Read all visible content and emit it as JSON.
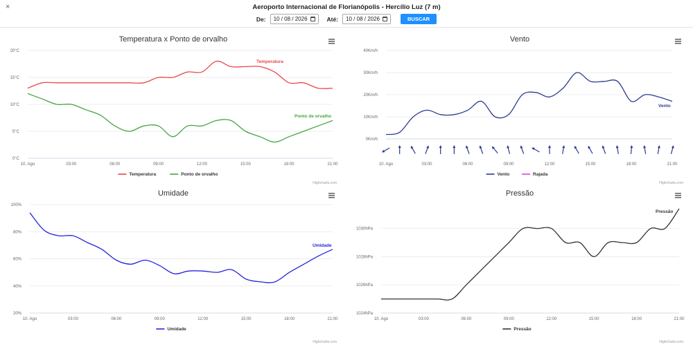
{
  "header": {
    "close_label": "×",
    "title": "Aeroporto Internacional de Florianópolis - Hercílio Luz (7 m)",
    "from_label": "De:",
    "from_value": "10 / 08 / 2026",
    "to_label": "Até:",
    "to_value": "10 / 08 / 2026",
    "search_label": "BUSCAR",
    "accent_color": "#1e90ff"
  },
  "credits": "Highcharts.com",
  "x_tick_labels": [
    "10. Ago",
    "03:00",
    "06:00",
    "09:00",
    "12:00",
    "15:00",
    "18:00",
    "21:00"
  ],
  "chart_data": [
    {
      "type": "line",
      "title": "Temperatura x Ponto de orvalho",
      "y_ticks": [
        "0°C",
        "5°C",
        "10°C",
        "15°C",
        "20°C"
      ],
      "ylim": [
        0,
        20
      ],
      "x_hours": [
        0,
        1,
        2,
        3,
        4,
        5,
        6,
        7,
        8,
        9,
        10,
        11,
        12,
        13,
        14,
        15,
        16,
        17,
        18,
        19,
        20,
        21
      ],
      "series": [
        {
          "name": "Temperatura",
          "color": "#e8474b",
          "values": [
            13,
            14,
            14,
            14,
            14,
            14,
            14,
            14,
            14,
            15,
            15,
            16,
            16,
            18,
            17,
            17,
            17,
            16,
            14,
            14,
            13,
            13
          ]
        },
        {
          "name": "Ponto de orvalho",
          "color": "#43a53f",
          "values": [
            12,
            11,
            10,
            10,
            9,
            8,
            6,
            5,
            6,
            6,
            4,
            6,
            6,
            7,
            7,
            5,
            4,
            3,
            4,
            5,
            6,
            7
          ]
        }
      ],
      "legend": "bottom-center"
    },
    {
      "type": "line",
      "title": "Vento",
      "y_ticks": [
        "0Km/h",
        "10Km/h",
        "20Km/h",
        "30Km/h",
        "40Km/h"
      ],
      "ylim": [
        0,
        40
      ],
      "x_hours": [
        0,
        1,
        2,
        3,
        4,
        5,
        6,
        7,
        8,
        9,
        10,
        11,
        12,
        13,
        14,
        15,
        16,
        17,
        18,
        19,
        20,
        21
      ],
      "series": [
        {
          "name": "Vento",
          "color": "#2b3a8f",
          "values": [
            2,
            3,
            10,
            13,
            11,
            11,
            13,
            17,
            10,
            11,
            20,
            21,
            19,
            23,
            30,
            26,
            26,
            26,
            17,
            20,
            19,
            17
          ]
        },
        {
          "name": "Rajada",
          "color": "#d645d6",
          "values": []
        }
      ],
      "wind_direction_deg": [
        240,
        0,
        330,
        20,
        0,
        0,
        340,
        340,
        320,
        345,
        340,
        300,
        0,
        10,
        330,
        330,
        340,
        350,
        5,
        350,
        10,
        15
      ],
      "legend": "bottom-center"
    },
    {
      "type": "line",
      "title": "Umidade",
      "y_ticks": [
        "20%",
        "40%",
        "60%",
        "80%",
        "100%"
      ],
      "ylim": [
        20,
        100
      ],
      "x_hours": [
        0,
        1,
        2,
        3,
        4,
        5,
        6,
        7,
        8,
        9,
        10,
        11,
        12,
        13,
        14,
        15,
        16,
        17,
        18,
        19,
        20,
        21
      ],
      "series": [
        {
          "name": "Umidade",
          "color": "#2323e0",
          "values": [
            94,
            81,
            77,
            77,
            72,
            67,
            59,
            56,
            59,
            55,
            49,
            51,
            51,
            50,
            52,
            45,
            43,
            43,
            50,
            56,
            62,
            67
          ]
        }
      ],
      "legend": "bottom-center"
    },
    {
      "type": "line",
      "title": "Pressão",
      "y_ticks": [
        "1024hPa",
        "1026hPa",
        "1028hPa",
        "1030hPa"
      ],
      "ylim": [
        1024,
        1031.4
      ],
      "x_hours": [
        0,
        1,
        2,
        3,
        4,
        5,
        6,
        7,
        8,
        9,
        10,
        11,
        12,
        13,
        14,
        15,
        16,
        17,
        18,
        19,
        20,
        21
      ],
      "series": [
        {
          "name": "Pressão",
          "color": "#333333",
          "values": [
            1025,
            1025,
            1025,
            1025,
            1025,
            1025,
            1026,
            1027,
            1028,
            1029,
            1030,
            1030,
            1030,
            1029,
            1029,
            1028,
            1029,
            1029,
            1029,
            1030,
            1030,
            1031.4
          ]
        }
      ],
      "legend": "bottom-center"
    }
  ]
}
